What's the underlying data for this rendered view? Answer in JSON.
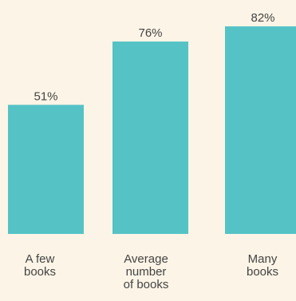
{
  "chart_data": {
    "type": "bar",
    "categories": [
      [
        "A few",
        "books"
      ],
      [
        "Average",
        "number",
        "of books"
      ],
      [
        "Many",
        "books"
      ]
    ],
    "values": [
      51,
      76,
      82
    ],
    "value_labels": [
      "51%",
      "76%",
      "82%"
    ],
    "ylim": [
      0,
      82
    ],
    "grid": false,
    "bar_color": "#55c3c6",
    "background_color": "#fcf4e6",
    "text_color": "#444444"
  }
}
